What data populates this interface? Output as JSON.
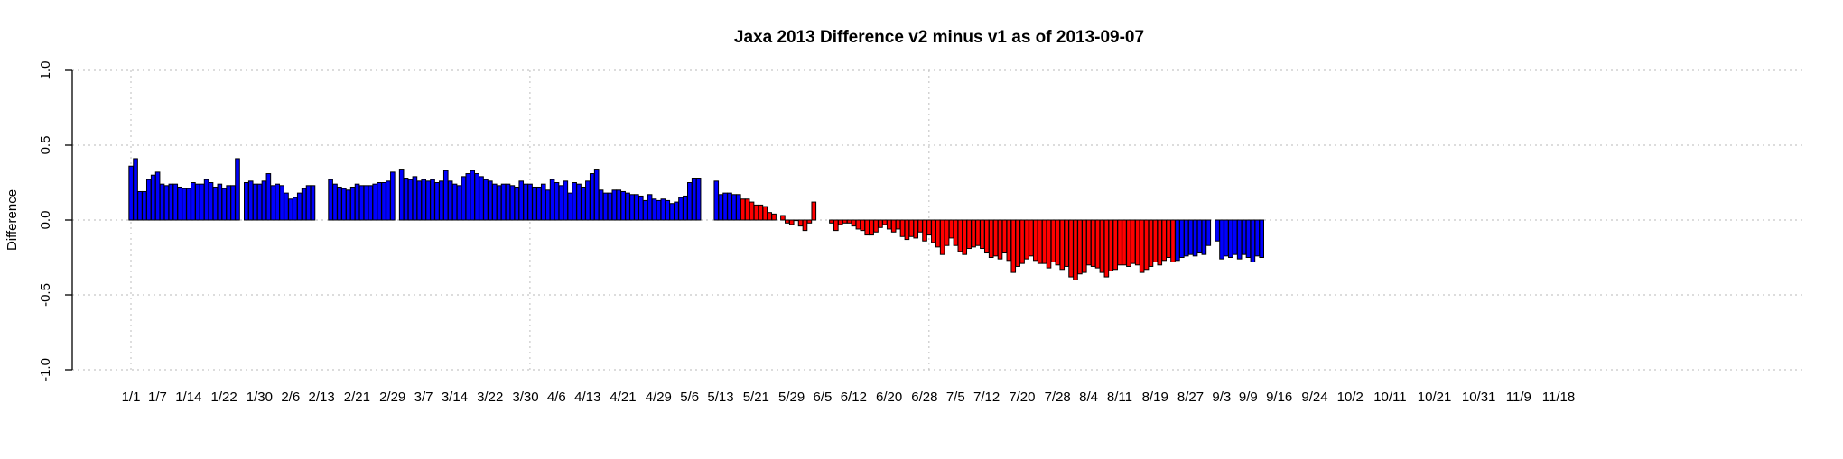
{
  "chart_data": {
    "type": "bar",
    "title": "Jaxa 2013 Difference v2 minus v1 as of 2013-09-07",
    "xlabel": "",
    "ylabel": "Difference",
    "ylim": [
      -1.0,
      1.0
    ],
    "yticks": [
      "-1.0",
      "-0.5",
      "0.0",
      "0.5",
      "1.0"
    ],
    "ytick_values": [
      -1.0,
      -0.5,
      0.0,
      0.5,
      1.0
    ],
    "x_axis": {
      "start": 1,
      "end": 366,
      "unit": "day of year"
    },
    "xticks": [
      {
        "label": "1/1",
        "day": 1
      },
      {
        "label": "1/7",
        "day": 7
      },
      {
        "label": "1/14",
        "day": 14
      },
      {
        "label": "1/22",
        "day": 22
      },
      {
        "label": "1/30",
        "day": 30
      },
      {
        "label": "2/6",
        "day": 37
      },
      {
        "label": "2/13",
        "day": 44
      },
      {
        "label": "2/21",
        "day": 52
      },
      {
        "label": "2/29",
        "day": 60
      },
      {
        "label": "3/7",
        "day": 67
      },
      {
        "label": "3/14",
        "day": 74
      },
      {
        "label": "3/22",
        "day": 82
      },
      {
        "label": "3/30",
        "day": 90
      },
      {
        "label": "4/6",
        "day": 97
      },
      {
        "label": "4/13",
        "day": 104
      },
      {
        "label": "4/21",
        "day": 112
      },
      {
        "label": "4/29",
        "day": 120
      },
      {
        "label": "5/6",
        "day": 127
      },
      {
        "label": "5/13",
        "day": 134
      },
      {
        "label": "5/21",
        "day": 142
      },
      {
        "label": "5/29",
        "day": 150
      },
      {
        "label": "6/5",
        "day": 157
      },
      {
        "label": "6/12",
        "day": 164
      },
      {
        "label": "6/20",
        "day": 172
      },
      {
        "label": "6/28",
        "day": 180
      },
      {
        "label": "7/5",
        "day": 187
      },
      {
        "label": "7/12",
        "day": 194
      },
      {
        "label": "7/20",
        "day": 202
      },
      {
        "label": "7/28",
        "day": 210
      },
      {
        "label": "8/4",
        "day": 217
      },
      {
        "label": "8/11",
        "day": 224
      },
      {
        "label": "8/19",
        "day": 232
      },
      {
        "label": "8/27",
        "day": 240
      },
      {
        "label": "9/3",
        "day": 247
      },
      {
        "label": "9/9",
        "day": 253
      },
      {
        "label": "9/16",
        "day": 260
      },
      {
        "label": "9/24",
        "day": 268
      },
      {
        "label": "10/2",
        "day": 276
      },
      {
        "label": "10/11",
        "day": 285
      },
      {
        "label": "10/21",
        "day": 295
      },
      {
        "label": "10/31",
        "day": 305
      },
      {
        "label": "11/9",
        "day": 314
      },
      {
        "label": "11/18",
        "day": 323
      }
    ],
    "vertical_grid_days": [
      1,
      91,
      181
    ],
    "horizontal_grid_values": [
      -1.0,
      -0.5,
      0.0,
      0.5,
      1.0
    ],
    "series": [
      {
        "name": "Difference",
        "start_day": 1,
        "values": [
          0.36,
          0.41,
          0.19,
          0.19,
          0.27,
          0.3,
          0.32,
          0.24,
          0.23,
          0.24,
          0.24,
          0.22,
          0.21,
          0.21,
          0.25,
          0.24,
          0.24,
          0.27,
          0.25,
          0.22,
          0.24,
          0.21,
          0.23,
          0.23,
          0.41,
          null,
          0.25,
          0.26,
          0.24,
          0.24,
          0.26,
          0.31,
          0.23,
          0.24,
          0.23,
          0.18,
          0.14,
          0.15,
          0.18,
          0.21,
          0.23,
          0.23,
          null,
          null,
          null,
          0.27,
          0.24,
          0.22,
          0.21,
          0.2,
          0.22,
          0.24,
          0.23,
          0.23,
          0.23,
          0.24,
          0.25,
          0.25,
          0.26,
          0.32,
          null,
          0.34,
          0.28,
          0.27,
          0.29,
          0.26,
          0.27,
          0.26,
          0.27,
          0.25,
          0.26,
          0.33,
          0.26,
          0.24,
          0.23,
          0.29,
          0.31,
          0.33,
          0.31,
          0.29,
          0.27,
          0.26,
          0.24,
          0.23,
          0.24,
          0.24,
          0.23,
          0.22,
          0.26,
          0.24,
          0.24,
          0.22,
          0.22,
          0.24,
          0.2,
          0.27,
          0.25,
          0.23,
          0.26,
          0.18,
          0.25,
          0.24,
          0.22,
          0.26,
          0.31,
          0.34,
          0.2,
          0.18,
          0.18,
          0.2,
          0.2,
          0.19,
          0.18,
          0.17,
          0.17,
          0.16,
          0.13,
          0.17,
          0.14,
          0.13,
          0.14,
          0.13,
          0.11,
          0.12,
          0.15,
          0.16,
          0.25,
          0.28,
          0.28,
          null,
          null,
          null,
          0.26,
          0.17,
          0.18,
          0.18,
          0.17,
          0.17,
          0.14,
          0.14,
          0.12,
          0.1,
          0.1,
          0.09,
          0.05,
          0.04,
          null,
          0.03,
          -0.02,
          -0.03,
          0.0,
          -0.04,
          -0.07,
          -0.02,
          0.12,
          null,
          null,
          null,
          -0.02,
          -0.07,
          -0.03,
          -0.02,
          -0.02,
          -0.04,
          -0.06,
          -0.07,
          -0.1,
          -0.1,
          -0.08,
          -0.05,
          -0.03,
          -0.06,
          -0.08,
          -0.06,
          -0.11,
          -0.13,
          -0.11,
          -0.12,
          -0.08,
          -0.14,
          -0.1,
          -0.15,
          -0.18,
          -0.23,
          -0.17,
          -0.12,
          -0.17,
          -0.21,
          -0.23,
          -0.19,
          -0.18,
          -0.17,
          -0.19,
          -0.22,
          -0.25,
          -0.24,
          -0.26,
          -0.22,
          -0.27,
          -0.35,
          -0.31,
          -0.29,
          -0.26,
          -0.24,
          -0.27,
          -0.29,
          -0.29,
          -0.32,
          -0.28,
          -0.3,
          -0.33,
          -0.31,
          -0.38,
          -0.4,
          -0.36,
          -0.35,
          -0.3,
          -0.31,
          -0.32,
          -0.35,
          -0.38,
          -0.34,
          -0.33,
          -0.3,
          -0.3,
          -0.31,
          -0.29,
          -0.3,
          -0.35,
          -0.33,
          -0.31,
          -0.28,
          -0.3,
          -0.27,
          -0.25,
          -0.28,
          -0.27,
          -0.25,
          -0.24,
          -0.23,
          -0.24,
          -0.22,
          -0.23,
          -0.17,
          null,
          -0.14,
          -0.26,
          -0.24,
          -0.25,
          -0.23,
          -0.26,
          -0.23,
          -0.25,
          -0.28,
          -0.24,
          -0.25
        ]
      }
    ],
    "colors": {
      "positive_before_cutoff": "#0000ff",
      "highlight": "#ff0000",
      "edge": "#000000",
      "grid": "#c8c8c8"
    },
    "red_day_range": [
      139,
      236
    ]
  }
}
